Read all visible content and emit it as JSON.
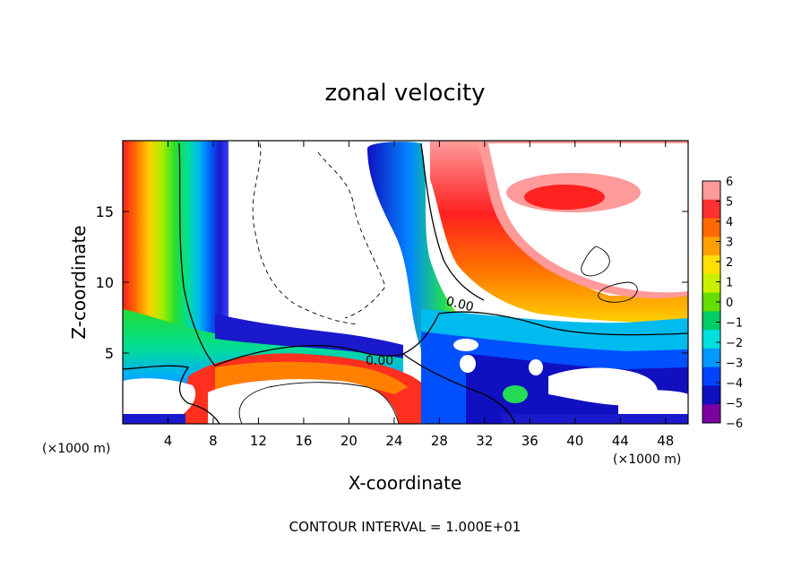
{
  "chart_data": {
    "type": "heatmap",
    "title": "zonal velocity",
    "xlabel": "X-coordinate",
    "ylabel": "Z-coordinate",
    "x_units": "(×1000 m)",
    "x_units_lower": "(×1000 m)",
    "xlim": [
      0,
      50
    ],
    "ylim": [
      0,
      20
    ],
    "x_ticks": [
      4,
      8,
      12,
      16,
      20,
      24,
      28,
      32,
      36,
      40,
      44,
      48
    ],
    "y_ticks": [
      5,
      10,
      15
    ],
    "colorbar": {
      "values": [
        6,
        5,
        4,
        3,
        2,
        1,
        0,
        -1,
        -2,
        -3,
        -4,
        -5,
        -6
      ],
      "tick_labels": [
        "6",
        "5",
        "4",
        "3",
        "2",
        "1",
        "0",
        "−1",
        "−2",
        "−3",
        "−4",
        "−5",
        "−6"
      ],
      "colors": [
        "#ff9a9a",
        "#ff3030",
        "#ff6a00",
        "#ffa000",
        "#ffe000",
        "#c8f000",
        "#66dd00",
        "#00cc66",
        "#00e0e0",
        "#0099ff",
        "#0044ff",
        "#1010c0",
        "#7a00a0"
      ]
    },
    "contour_labels": [
      "0.00",
      "0.00"
    ],
    "footer": "CONTOUR INTERVAL = 1.000E+01",
    "grid": false
  }
}
